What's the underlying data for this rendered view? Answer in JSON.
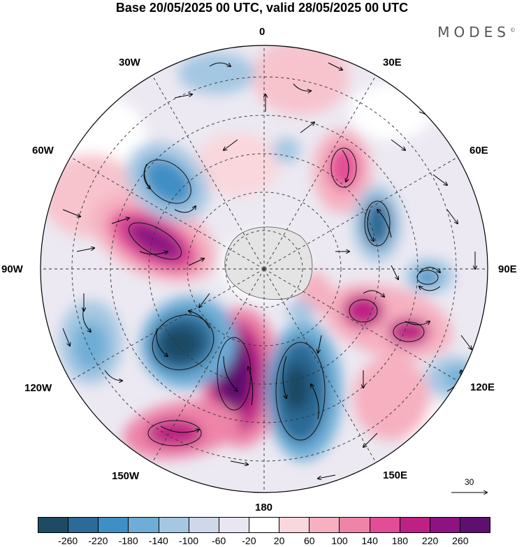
{
  "title": "Base 20/05/2025 00 UTC, valid 28/05/2025 00 UTC",
  "logo": "MODES",
  "logo_mark": "©",
  "longitude_labels": [
    {
      "id": "lon-0",
      "text": "0"
    },
    {
      "id": "lon-30e",
      "text": "30E"
    },
    {
      "id": "lon-60e",
      "text": "60E"
    },
    {
      "id": "lon-90e",
      "text": "90E"
    },
    {
      "id": "lon-120e",
      "text": "120E"
    },
    {
      "id": "lon-150e",
      "text": "150E"
    },
    {
      "id": "lon-180",
      "text": "180"
    },
    {
      "id": "lon-150w",
      "text": "150W"
    },
    {
      "id": "lon-120w",
      "text": "120W"
    },
    {
      "id": "lon-90w",
      "text": "90W"
    },
    {
      "id": "lon-60w",
      "text": "60W"
    },
    {
      "id": "lon-30w",
      "text": "30W"
    }
  ],
  "reference_vector": {
    "label": "30"
  },
  "colorbar": {
    "colors": [
      "#1f4a63",
      "#2c6a97",
      "#3f8fc4",
      "#6eadd6",
      "#a4c7e2",
      "#cfd8ea",
      "#e9e6f1",
      "#ffffff",
      "#fad7dd",
      "#f6b0c0",
      "#ee84a8",
      "#e14d97",
      "#be2184",
      "#8e1282",
      "#5e0f70"
    ],
    "ticks": [
      "-260",
      "-220",
      "-180",
      "-140",
      "-100",
      "-60",
      "-20",
      "20",
      "60",
      "100",
      "140",
      "180",
      "220",
      "260"
    ]
  }
}
